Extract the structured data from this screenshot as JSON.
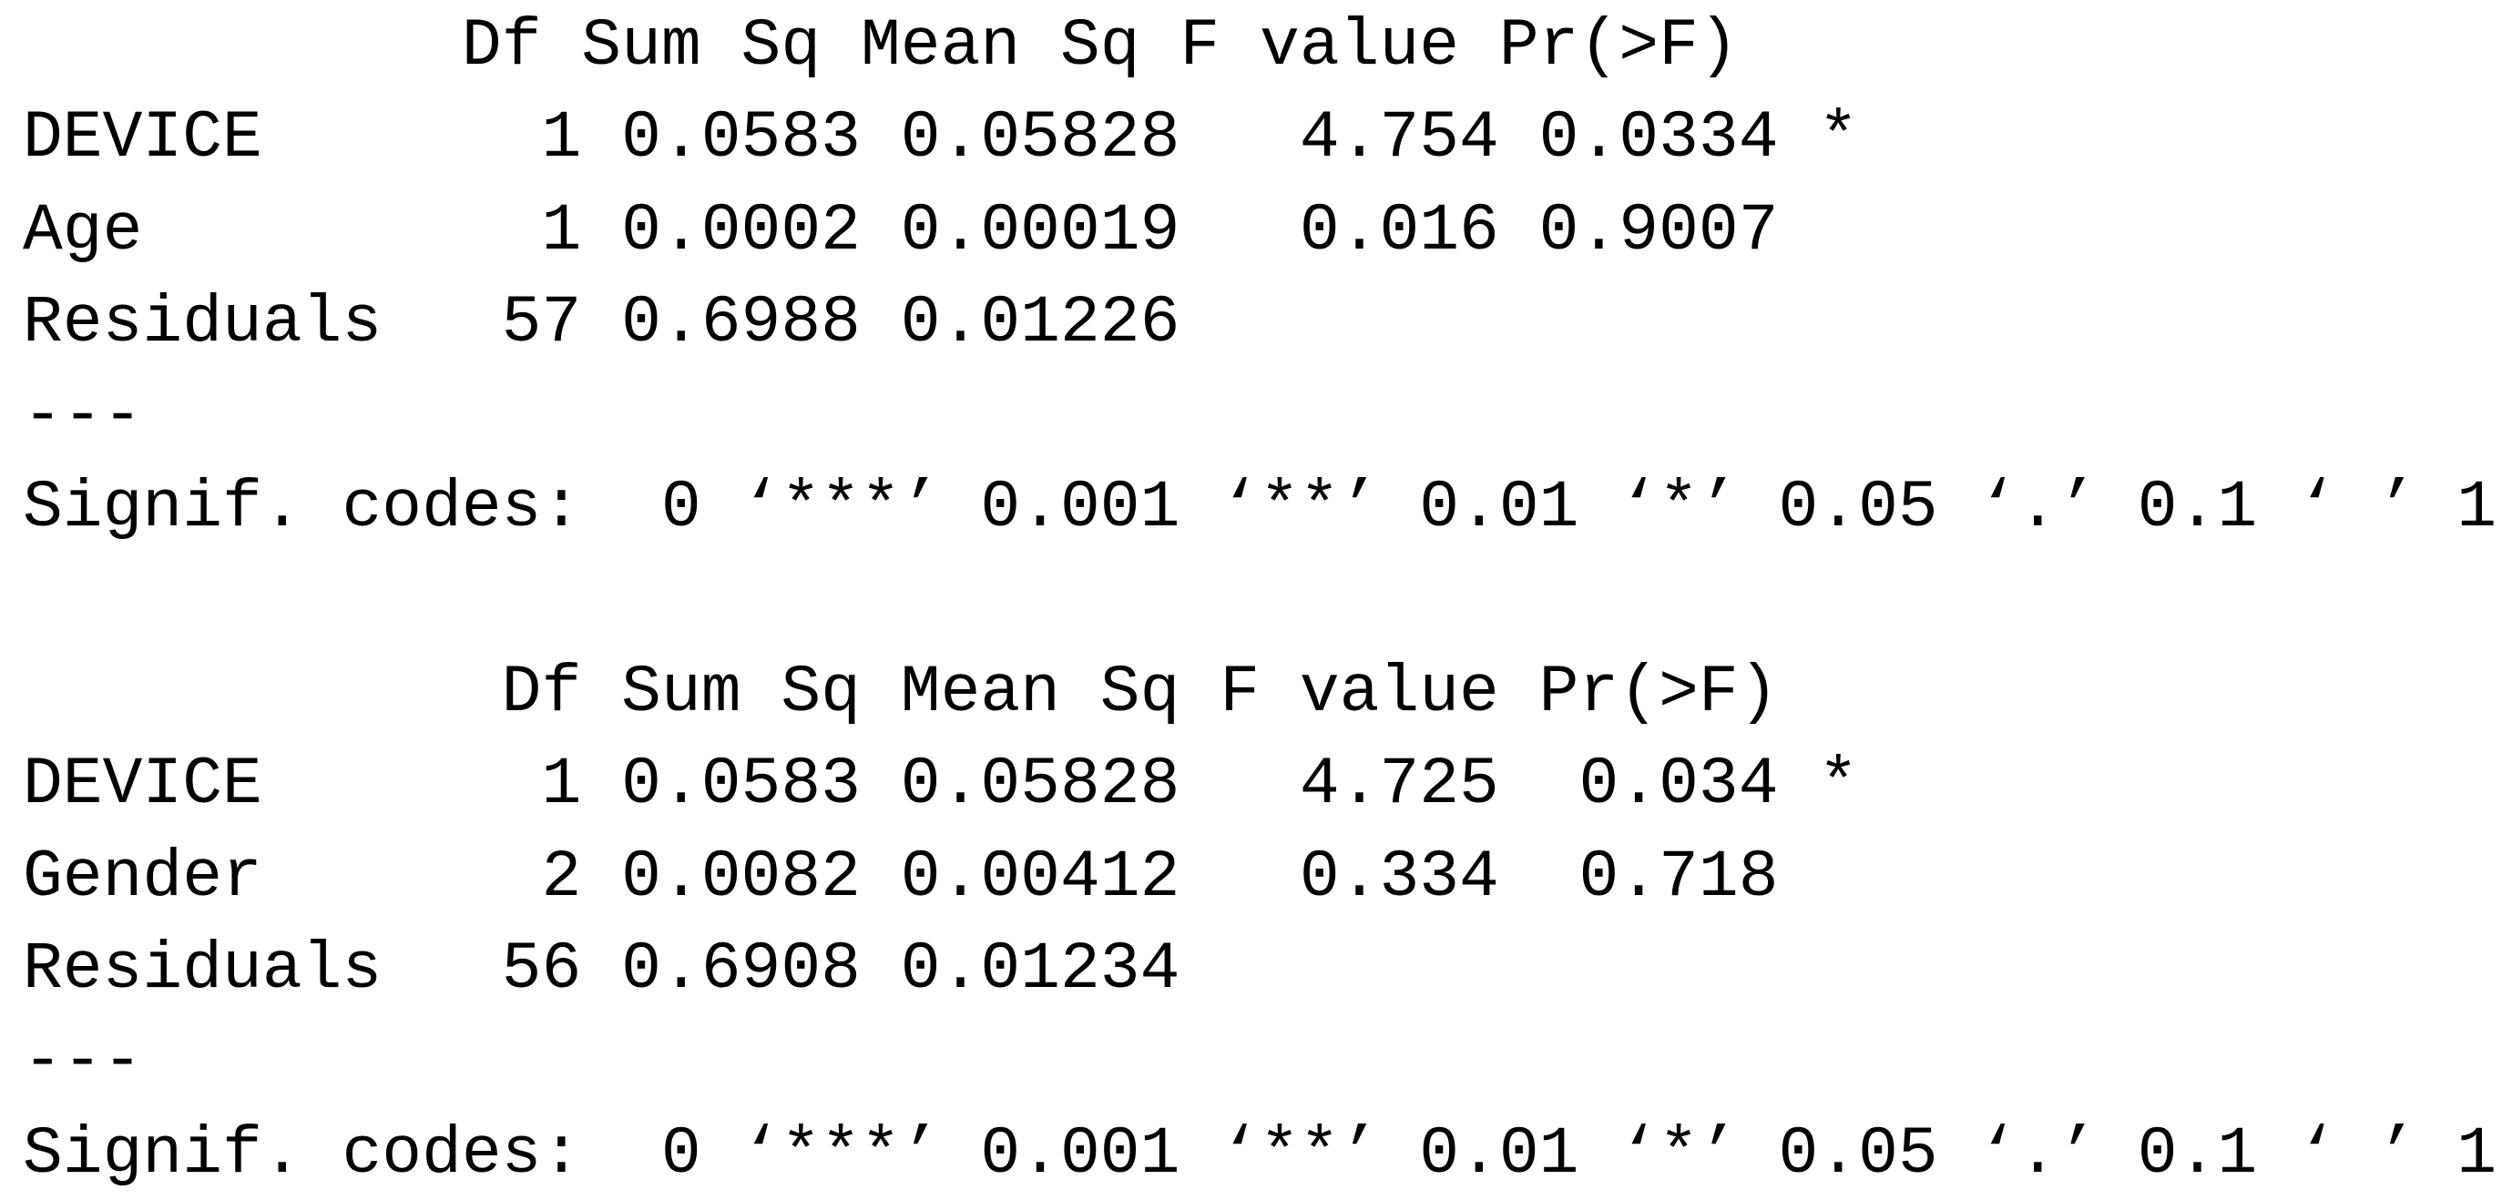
{
  "page": {
    "background_color": "#ffffff",
    "text_color": "#000000",
    "content_kind": "R ANOVA summary console output"
  },
  "anova_tables": [
    {
      "columns": [
        "Df",
        "Sum Sq",
        "Mean Sq",
        "F value",
        "Pr(>F)"
      ],
      "rows": [
        {
          "term": "DEVICE",
          "df": "1",
          "sum_sq": "0.0583",
          "mean_sq": "0.05828",
          "f_value": "4.754",
          "pr_f": "0.0334",
          "signif": "*"
        },
        {
          "term": "Age",
          "df": "1",
          "sum_sq": "0.0002",
          "mean_sq": "0.00019",
          "f_value": "0.016",
          "pr_f": "0.9007",
          "signif": ""
        },
        {
          "term": "Residuals",
          "df": "57",
          "sum_sq": "0.6988",
          "mean_sq": "0.01226",
          "f_value": "",
          "pr_f": "",
          "signif": ""
        }
      ],
      "separator": "---",
      "signif_codes": "Signif. codes:  0 ‘***’ 0.001 ‘**’ 0.01 ‘*’ 0.05 ‘.’ 0.1 ‘ ’ 1"
    },
    {
      "columns": [
        "Df",
        "Sum Sq",
        "Mean Sq",
        "F value",
        "Pr(>F)"
      ],
      "rows": [
        {
          "term": "DEVICE",
          "df": "1",
          "sum_sq": "0.0583",
          "mean_sq": "0.05828",
          "f_value": "4.725",
          "pr_f": "0.034",
          "signif": "*"
        },
        {
          "term": "Gender",
          "df": "2",
          "sum_sq": "0.0082",
          "mean_sq": "0.00412",
          "f_value": "0.334",
          "pr_f": "0.718",
          "signif": ""
        },
        {
          "term": "Residuals",
          "df": "56",
          "sum_sq": "0.6908",
          "mean_sq": "0.01234",
          "f_value": "",
          "pr_f": "",
          "signif": ""
        }
      ],
      "separator": "---",
      "signif_codes": "Signif. codes:  0 ‘***’ 0.001 ‘**’ 0.01 ‘*’ 0.05 ‘.’ 0.1 ‘ ’ 1"
    }
  ],
  "lines": [
    "           Df Sum Sq Mean Sq F value Pr(>F)",
    "DEVICE       1 0.0583 0.05828   4.754 0.0334 *",
    "Age          1 0.0002 0.00019   0.016 0.9007",
    "Residuals   57 0.6988 0.01226",
    "---",
    "Signif. codes:  0 ‘***’ 0.001 ‘**’ 0.01 ‘*’ 0.05 ‘.’ 0.1 ‘ ’ 1",
    " ",
    "            Df Sum Sq Mean Sq F value Pr(>F)",
    "DEVICE       1 0.0583 0.05828   4.725  0.034 *",
    "Gender       2 0.0082 0.00412   0.334  0.718",
    "Residuals   56 0.6908 0.01234",
    "---",
    "Signif. codes:  0 ‘***’ 0.001 ‘**’ 0.01 ‘*’ 0.05 ‘.’ 0.1 ‘ ’ 1"
  ]
}
